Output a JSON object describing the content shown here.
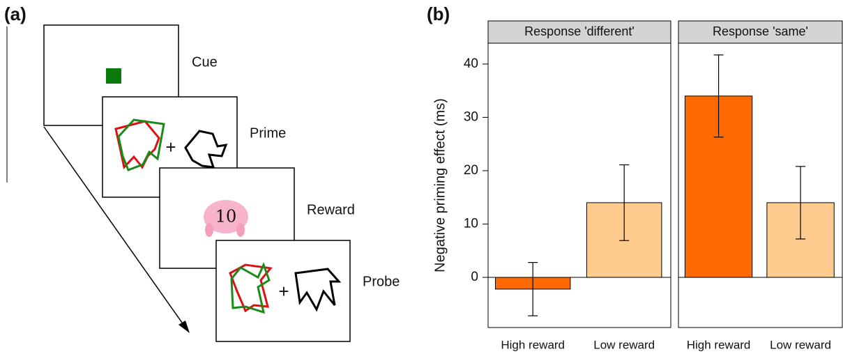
{
  "panel_a": {
    "label": "(a)",
    "stages": [
      "Cue",
      "Prime",
      "Reward",
      "Probe"
    ],
    "reward_amount": "10",
    "prime_plus": "+",
    "probe_plus": "+"
  },
  "panel_b_label": "(b)",
  "chart_data": [
    {
      "type": "bar",
      "title": "Response 'different'",
      "ylabel": "Negative priming effect (ms)",
      "categories": [
        "High reward",
        "Low reward"
      ],
      "values": [
        -2.2,
        14
      ],
      "errors": [
        5,
        7.1
      ],
      "colors": [
        "#ff6a00",
        "#ffcb8e"
      ],
      "ylim": [
        -9.4,
        43.9
      ],
      "yticks": [
        0,
        10,
        20,
        30,
        40
      ]
    },
    {
      "type": "bar",
      "title": "Response 'same'",
      "categories": [
        "High reward",
        "Low reward"
      ],
      "values": [
        34,
        14
      ],
      "errors": [
        7.7,
        6.8
      ],
      "colors": [
        "#ff6a00",
        "#ffcb8e"
      ],
      "ylim": [
        -9.4,
        43.9
      ],
      "yticks": [
        0,
        10,
        20,
        30,
        40
      ]
    }
  ]
}
